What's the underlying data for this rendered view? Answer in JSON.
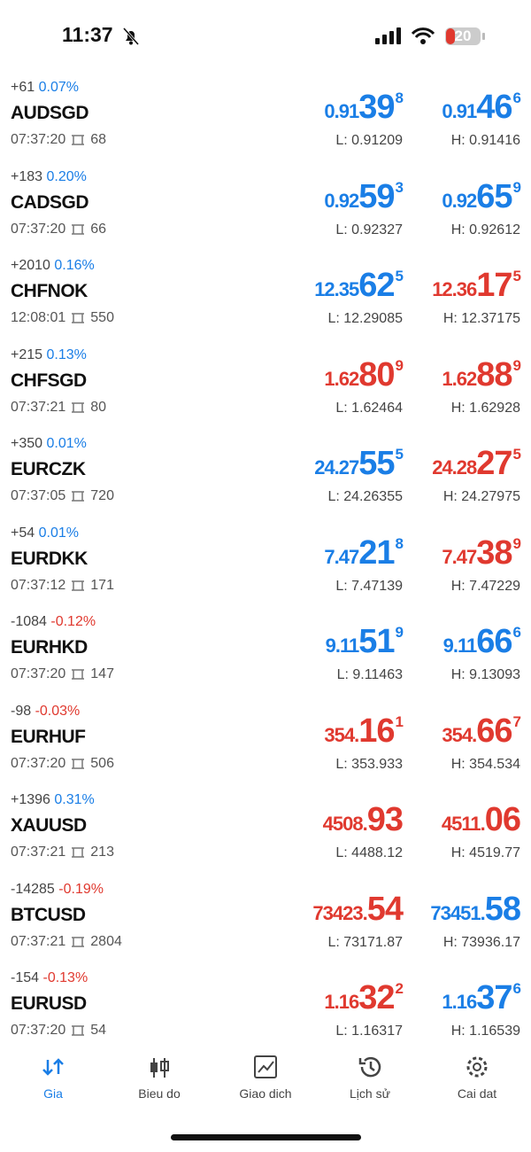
{
  "status_bar": {
    "time": "11:37",
    "battery": "20"
  },
  "quotes": [
    {
      "change": "+61",
      "percent": "0.07%",
      "change_color": "#1a7ee6",
      "symbol": "AUDSGD",
      "time": "07:37:20",
      "spread": "68",
      "bid": {
        "int": "0.91",
        "big": "39",
        "sup": "8",
        "color": "#1a7ee6"
      },
      "ask": {
        "int": "0.91",
        "big": "46",
        "sup": "6",
        "color": "#1a7ee6"
      },
      "low": "L: 0.91209",
      "high": "H: 0.91416"
    },
    {
      "change": "+183",
      "percent": "0.20%",
      "change_color": "#1a7ee6",
      "symbol": "CADSGD",
      "time": "07:37:20",
      "spread": "66",
      "bid": {
        "int": "0.92",
        "big": "59",
        "sup": "3",
        "color": "#1a7ee6"
      },
      "ask": {
        "int": "0.92",
        "big": "65",
        "sup": "9",
        "color": "#1a7ee6"
      },
      "low": "L: 0.92327",
      "high": "H: 0.92612"
    },
    {
      "change": "+2010",
      "percent": "0.16%",
      "change_color": "#1a7ee6",
      "symbol": "CHFNOK",
      "time": "12:08:01",
      "spread": "550",
      "bid": {
        "int": "12.35",
        "big": "62",
        "sup": "5",
        "color": "#1a7ee6"
      },
      "ask": {
        "int": "12.36",
        "big": "17",
        "sup": "5",
        "color": "#e0392f"
      },
      "low": "L: 12.29085",
      "high": "H: 12.37175"
    },
    {
      "change": "+215",
      "percent": "0.13%",
      "change_color": "#1a7ee6",
      "symbol": "CHFSGD",
      "time": "07:37:21",
      "spread": "80",
      "bid": {
        "int": "1.62",
        "big": "80",
        "sup": "9",
        "color": "#e0392f"
      },
      "ask": {
        "int": "1.62",
        "big": "88",
        "sup": "9",
        "color": "#e0392f"
      },
      "low": "L: 1.62464",
      "high": "H: 1.62928"
    },
    {
      "change": "+350",
      "percent": "0.01%",
      "change_color": "#1a7ee6",
      "symbol": "EURCZK",
      "time": "07:37:05",
      "spread": "720",
      "bid": {
        "int": "24.27",
        "big": "55",
        "sup": "5",
        "color": "#1a7ee6"
      },
      "ask": {
        "int": "24.28",
        "big": "27",
        "sup": "5",
        "color": "#e0392f"
      },
      "low": "L: 24.26355",
      "high": "H: 24.27975"
    },
    {
      "change": "+54",
      "percent": "0.01%",
      "change_color": "#1a7ee6",
      "symbol": "EURDKK",
      "time": "07:37:12",
      "spread": "171",
      "bid": {
        "int": "7.47",
        "big": "21",
        "sup": "8",
        "color": "#1a7ee6"
      },
      "ask": {
        "int": "7.47",
        "big": "38",
        "sup": "9",
        "color": "#e0392f"
      },
      "low": "L: 7.47139",
      "high": "H: 7.47229"
    },
    {
      "change": "-1084",
      "percent": "-0.12%",
      "change_color": "#e0392f",
      "symbol": "EURHKD",
      "time": "07:37:20",
      "spread": "147",
      "bid": {
        "int": "9.11",
        "big": "51",
        "sup": "9",
        "color": "#1a7ee6"
      },
      "ask": {
        "int": "9.11",
        "big": "66",
        "sup": "6",
        "color": "#1a7ee6"
      },
      "low": "L: 9.11463",
      "high": "H: 9.13093"
    },
    {
      "change": "-98",
      "percent": "-0.03%",
      "change_color": "#e0392f",
      "symbol": "EURHUF",
      "time": "07:37:20",
      "spread": "506",
      "bid": {
        "int": "354.",
        "big": "16",
        "sup": "1",
        "color": "#e0392f"
      },
      "ask": {
        "int": "354.",
        "big": "66",
        "sup": "7",
        "color": "#e0392f"
      },
      "low": "L: 353.933",
      "high": "H: 354.534"
    },
    {
      "change": "+1396",
      "percent": "0.31%",
      "change_color": "#1a7ee6",
      "symbol": "XAUUSD",
      "time": "07:37:21",
      "spread": "213",
      "bid": {
        "int": "4508.",
        "big": "93",
        "color": "#e0392f"
      },
      "ask": {
        "int": "4511.",
        "big": "06",
        "color": "#e0392f"
      },
      "low": "L: 4488.12",
      "high": "H: 4519.77"
    },
    {
      "change": "-14285",
      "percent": "-0.19%",
      "change_color": "#e0392f",
      "symbol": "BTCUSD",
      "time": "07:37:21",
      "spread": "2804",
      "bid": {
        "int": "73423.",
        "big": "54",
        "color": "#e0392f"
      },
      "ask": {
        "int": "73451.",
        "big": "58",
        "color": "#1a7ee6"
      },
      "low": "L: 73171.87",
      "high": "H: 73936.17"
    },
    {
      "change": "-154",
      "percent": "-0.13%",
      "change_color": "#e0392f",
      "symbol": "EURUSD",
      "time": "07:37:20",
      "spread": "54",
      "bid": {
        "int": "1.16",
        "big": "32",
        "sup": "2",
        "color": "#e0392f"
      },
      "ask": {
        "int": "1.16",
        "big": "37",
        "sup": "6",
        "color": "#1a7ee6"
      },
      "low": "L: 1.16317",
      "high": "H: 1.16539"
    }
  ],
  "tabs": [
    {
      "label": "Gia",
      "active": true
    },
    {
      "label": "Bieu do"
    },
    {
      "label": "Giao dich"
    },
    {
      "label": "Lịch sử"
    },
    {
      "label": "Cai dat"
    }
  ]
}
